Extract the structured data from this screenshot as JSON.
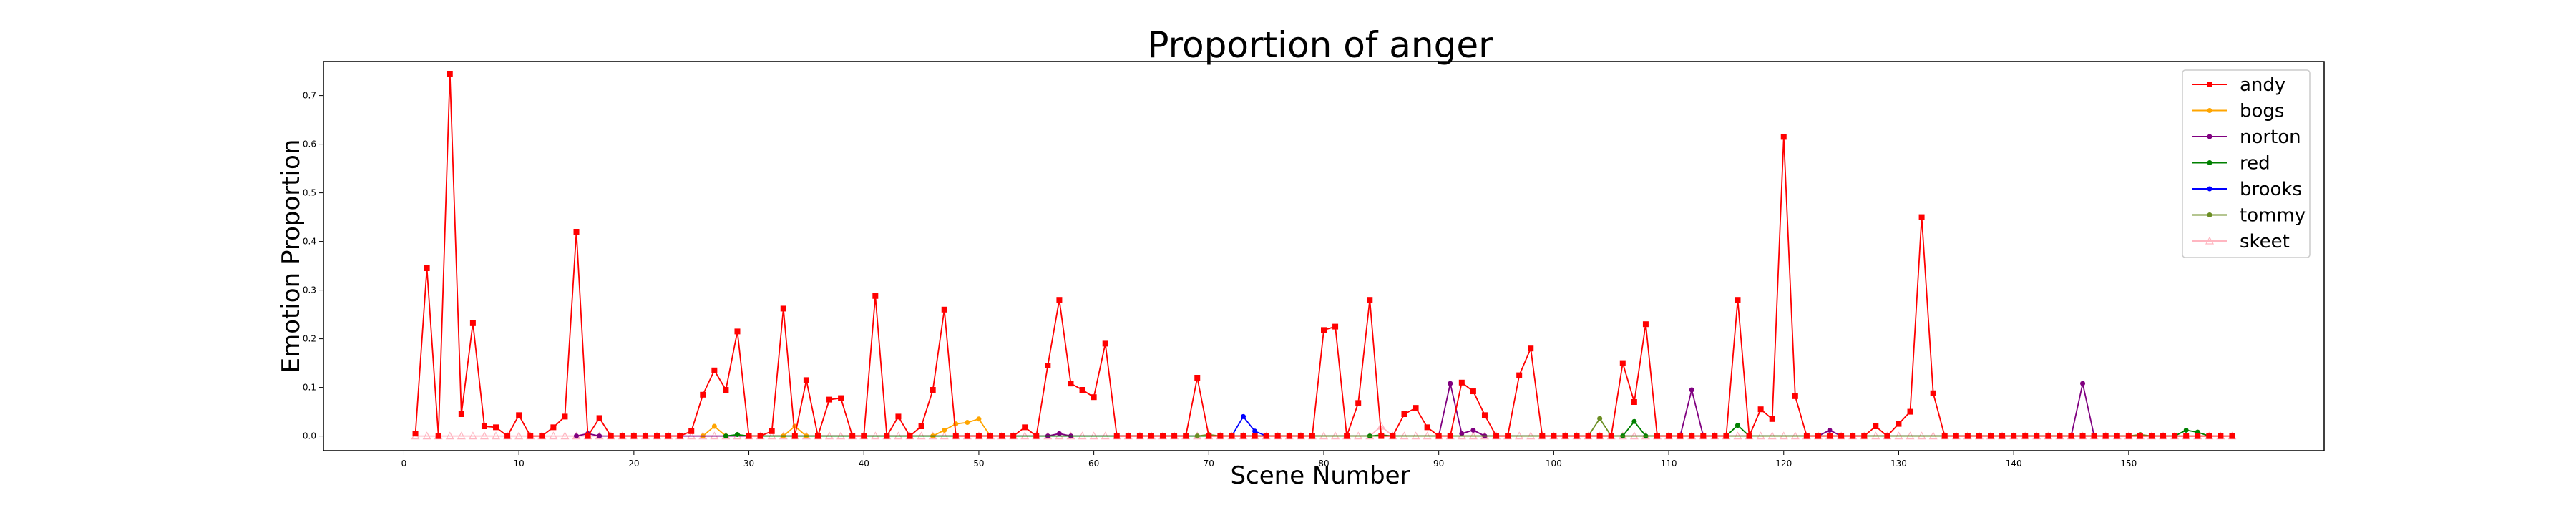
{
  "chart_data": {
    "type": "line",
    "title": "Proportion of anger",
    "xlabel": "Scene Number",
    "ylabel": "Emotion Proportion",
    "xlim": [
      -7,
      167
    ],
    "ylim": [
      -0.03,
      0.77
    ],
    "xticks": [
      0,
      10,
      20,
      30,
      40,
      50,
      60,
      70,
      80,
      90,
      100,
      110,
      120,
      130,
      140,
      150
    ],
    "yticks": [
      0.0,
      0.1,
      0.2,
      0.3,
      0.4,
      0.5,
      0.6,
      0.7
    ],
    "grid": false,
    "legend_position": "top-right",
    "x": [
      1,
      2,
      3,
      4,
      5,
      6,
      7,
      8,
      9,
      10,
      11,
      12,
      13,
      14,
      15,
      16,
      17,
      18,
      19,
      20,
      21,
      22,
      23,
      24,
      25,
      26,
      27,
      28,
      29,
      30,
      31,
      32,
      33,
      34,
      35,
      36,
      37,
      38,
      39,
      40,
      41,
      42,
      43,
      44,
      45,
      46,
      47,
      48,
      49,
      50,
      51,
      52,
      53,
      54,
      55,
      56,
      57,
      58,
      59,
      60,
      61,
      62,
      63,
      64,
      65,
      66,
      67,
      68,
      69,
      70,
      71,
      72,
      73,
      74,
      75,
      76,
      77,
      78,
      79,
      80,
      81,
      82,
      83,
      84,
      85,
      86,
      87,
      88,
      89,
      90,
      91,
      92,
      93,
      94,
      95,
      96,
      97,
      98,
      99,
      100,
      101,
      102,
      103,
      104,
      105,
      106,
      107,
      108,
      109,
      110,
      111,
      112,
      113,
      114,
      115,
      116,
      117,
      118,
      119,
      120,
      121,
      122,
      123,
      124,
      125,
      126,
      127,
      128,
      129,
      130,
      131,
      132,
      133,
      134,
      135,
      136,
      137,
      138,
      139,
      140,
      141,
      142,
      143,
      144,
      145,
      146,
      147,
      148,
      149,
      150,
      151,
      152,
      153,
      154,
      155,
      156,
      157,
      158,
      159
    ],
    "series": [
      {
        "name": "andy",
        "color": "#ff0000",
        "marker": "square",
        "values": [
          0.005,
          0.345,
          0,
          0.745,
          0.045,
          0.232,
          0.02,
          0.018,
          0,
          0.043,
          0,
          0,
          0.018,
          0.04,
          0.42,
          0,
          0.037,
          0,
          0,
          0,
          0,
          0,
          0,
          0,
          0.01,
          0.085,
          0.135,
          0.095,
          0.215,
          0,
          0,
          0.01,
          0.262,
          0,
          0.115,
          0,
          0.075,
          0.078,
          0,
          0,
          0.288,
          0,
          0.04,
          0,
          0.02,
          0.095,
          0.26,
          0,
          0,
          0,
          0,
          0,
          0,
          0.018,
          0,
          0.145,
          0.28,
          0.108,
          0.095,
          0.08,
          0.19,
          0,
          0,
          0,
          0,
          0,
          0,
          0,
          0.12,
          0,
          0,
          0,
          0,
          0,
          0,
          0,
          0,
          0,
          0,
          0.218,
          0.225,
          0,
          0.068,
          0.28,
          0,
          0,
          0.045,
          0.058,
          0.018,
          0,
          0,
          0.11,
          0.092,
          0.043,
          0,
          0,
          0.125,
          0.18,
          0,
          0,
          0,
          0,
          0,
          0,
          0,
          0.15,
          0.07,
          0.23,
          0,
          0,
          0,
          0,
          0,
          0,
          0,
          0.28,
          0,
          0.055,
          0.035,
          0.615,
          0.082,
          0,
          0,
          0,
          0,
          0,
          0,
          0.02,
          0,
          0.025,
          0.05,
          0.45,
          0.088,
          0,
          0,
          0,
          0,
          0,
          0,
          0,
          0,
          0,
          0,
          0,
          0,
          0,
          0,
          0,
          0,
          0,
          0,
          0,
          0,
          0,
          0,
          0,
          0,
          0,
          0
        ]
      },
      {
        "name": "bogs",
        "color": "#ffa500",
        "marker": "circle",
        "points": [
          [
            26,
            0
          ],
          [
            27,
            0.02
          ],
          [
            28,
            0
          ],
          [
            33,
            0
          ],
          [
            34,
            0.02
          ],
          [
            35,
            0
          ],
          [
            46,
            0
          ],
          [
            47,
            0.012
          ],
          [
            48,
            0.025
          ],
          [
            49,
            0.028
          ],
          [
            50,
            0.035
          ],
          [
            51,
            0
          ]
        ]
      },
      {
        "name": "norton",
        "color": "#800080",
        "marker": "circle",
        "points": [
          [
            15,
            0
          ],
          [
            16,
            0.005
          ],
          [
            17,
            0
          ],
          [
            56,
            0
          ],
          [
            57,
            0.005
          ],
          [
            58,
            0
          ],
          [
            90,
            0
          ],
          [
            91,
            0.108
          ],
          [
            92,
            0.005
          ],
          [
            93,
            0.012
          ],
          [
            94,
            0
          ],
          [
            111,
            0
          ],
          [
            112,
            0.095
          ],
          [
            113,
            0
          ],
          [
            123,
            0
          ],
          [
            124,
            0.012
          ],
          [
            125,
            0
          ],
          [
            145,
            0
          ],
          [
            146,
            0.108
          ],
          [
            147,
            0
          ]
        ]
      },
      {
        "name": "red",
        "color": "#008000",
        "marker": "circle",
        "points": [
          [
            28,
            0
          ],
          [
            29,
            0.003
          ],
          [
            30,
            0
          ],
          [
            84,
            0
          ],
          [
            85,
            0.002
          ],
          [
            86,
            0
          ],
          [
            106,
            0
          ],
          [
            107,
            0.03
          ],
          [
            108,
            0
          ],
          [
            115,
            0
          ],
          [
            116,
            0.022
          ],
          [
            117,
            0
          ],
          [
            154,
            0
          ],
          [
            155,
            0.012
          ],
          [
            156,
            0.008
          ],
          [
            157,
            0
          ]
        ]
      },
      {
        "name": "brooks",
        "color": "#0000ff",
        "marker": "circle",
        "points": [
          [
            72,
            0
          ],
          [
            73,
            0.04
          ],
          [
            74,
            0.01
          ],
          [
            75,
            0
          ]
        ]
      },
      {
        "name": "tommy",
        "color": "#6b8e23",
        "marker": "circle",
        "points": [
          [
            69,
            0
          ],
          [
            70,
            0.003
          ],
          [
            71,
            0
          ],
          [
            103,
            0
          ],
          [
            104,
            0.036
          ],
          [
            105,
            0
          ],
          [
            150,
            0
          ],
          [
            151,
            0.003
          ],
          [
            152,
            0
          ]
        ]
      },
      {
        "name": "skeet",
        "color": "#ffb6c1",
        "marker": "triangle",
        "values_all_scenes": 0,
        "points": [
          [
            84,
            0
          ],
          [
            85,
            0.02
          ],
          [
            86,
            0
          ]
        ]
      }
    ]
  }
}
